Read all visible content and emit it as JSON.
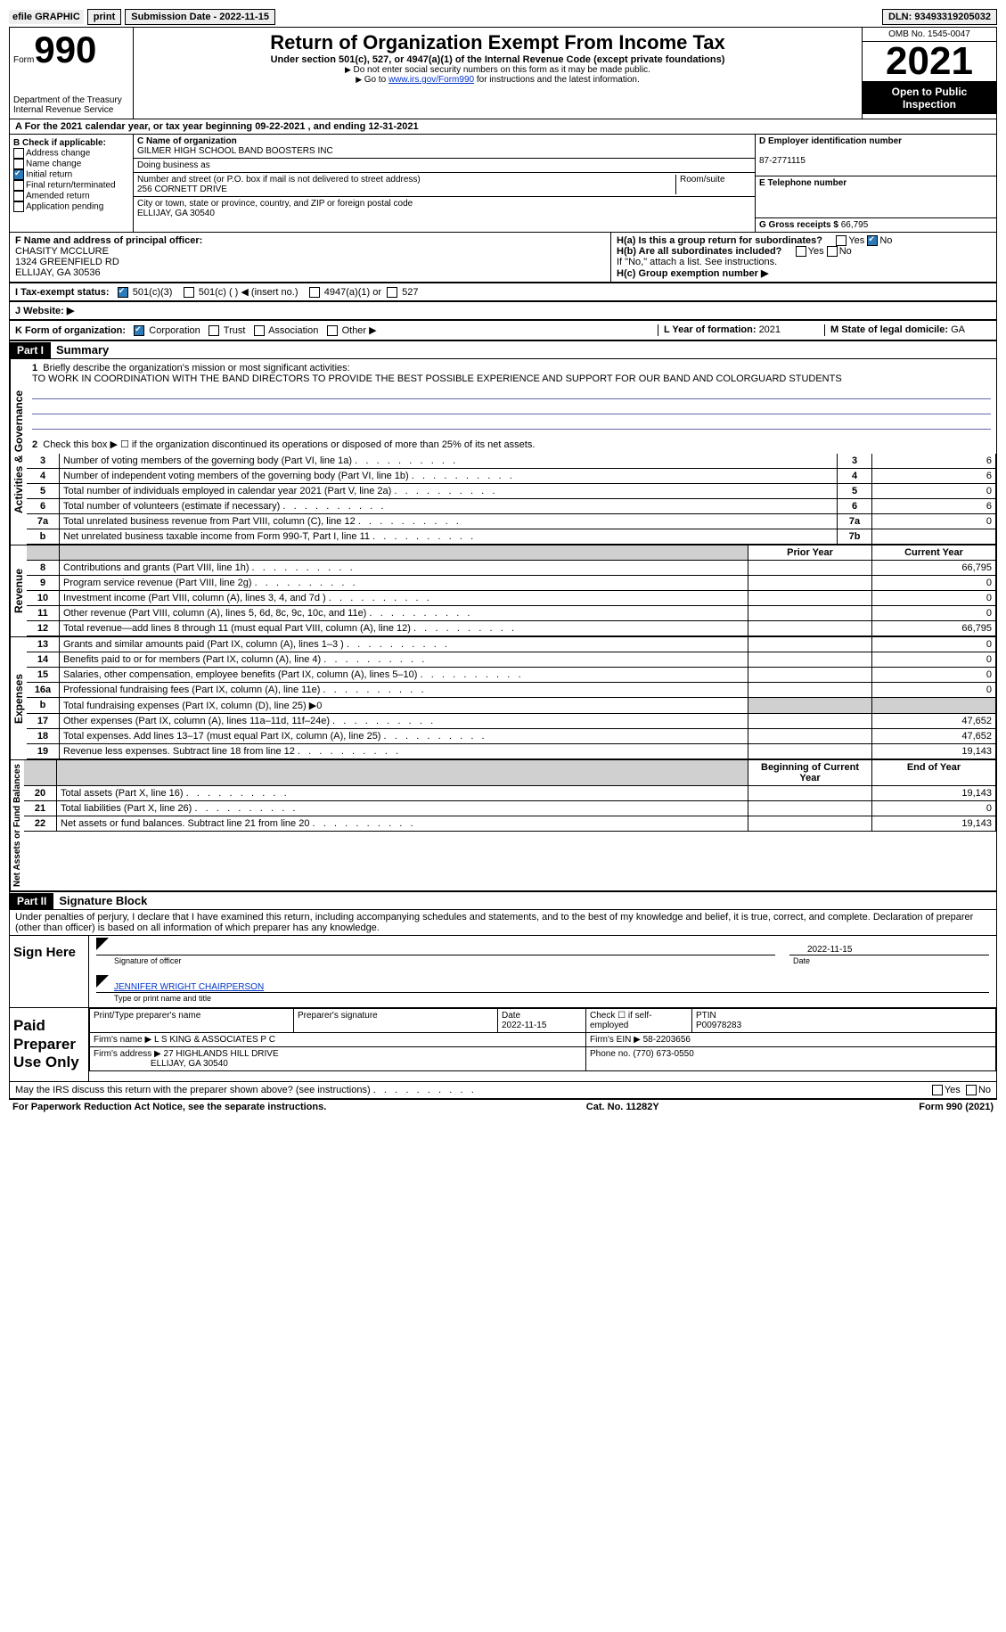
{
  "top": {
    "efile": "efile GRAPHIC",
    "print": "print",
    "submission_label": "Submission Date - ",
    "submission_date": "2022-11-15",
    "dln_label": "DLN: ",
    "dln": "93493319205032"
  },
  "header": {
    "form_label": "Form",
    "form_number": "990",
    "title": "Return of Organization Exempt From Income Tax",
    "sub1": "Under section 501(c), 527, or 4947(a)(1) of the Internal Revenue Code (except private foundations)",
    "sub2": "Do not enter social security numbers on this form as it may be made public.",
    "sub3_a": "Go to ",
    "sub3_link": "www.irs.gov/Form990",
    "sub3_b": " for instructions and the latest information.",
    "dept": "Department of the Treasury",
    "irs": "Internal Revenue Service",
    "omb": "OMB No. 1545-0047",
    "year": "2021",
    "open": "Open to Public Inspection"
  },
  "a": {
    "line": "A For the 2021 calendar year, or tax year beginning 09-22-2021    , and ending 12-31-2021"
  },
  "b": {
    "label": "B Check if applicable:",
    "addr": "Address change",
    "name": "Name change",
    "initial": "Initial return",
    "final": "Final return/terminated",
    "amended": "Amended return",
    "app": "Application pending"
  },
  "c": {
    "name_label": "C Name of organization",
    "name": "GILMER HIGH SCHOOL BAND BOOSTERS INC",
    "dba_label": "Doing business as",
    "street_label": "Number and street (or P.O. box if mail is not delivered to street address)",
    "street": "256 CORNETT DRIVE",
    "room_label": "Room/suite",
    "city_label": "City or town, state or province, country, and ZIP or foreign postal code",
    "city": "ELLIJAY, GA   30540"
  },
  "d": {
    "ein_label": "D Employer identification number",
    "ein": "87-2771115",
    "tel_label": "E Telephone number",
    "g_label": "G Gross receipts $ ",
    "g_val": "66,795"
  },
  "f": {
    "label": "F  Name and address of principal officer:",
    "name": "CHASITY MCCLURE",
    "street": "1324 GREENFIELD RD",
    "city": "ELLIJAY, GA   30536"
  },
  "h": {
    "a_label": "H(a)  Is this a group return for subordinates?",
    "yes": "Yes",
    "no": "No",
    "b_label": "H(b)  Are all subordinates included?",
    "b_note": "If \"No,\" attach a list. See instructions.",
    "c_label": "H(c)  Group exemption number ▶"
  },
  "i": {
    "label": "I   Tax-exempt status:",
    "o1": "501(c)(3)",
    "o2": "501(c) (   ) ◀ (insert no.)",
    "o3": "4947(a)(1) or",
    "o4": "527"
  },
  "j": {
    "label": "J   Website: ▶"
  },
  "k": {
    "label": "K Form of organization:",
    "corp": "Corporation",
    "trust": "Trust",
    "assoc": "Association",
    "other": "Other ▶",
    "l_label": "L Year of formation: ",
    "l_val": "2021",
    "m_label": "M State of legal domicile: ",
    "m_val": "GA"
  },
  "part1": {
    "label": "Part I",
    "title": "Summary",
    "l1_label": "1",
    "l1_text": "Briefly describe the organization's mission or most significant activities:",
    "l1_val": "TO WORK IN COORDINATION WITH THE BAND DIRECTORS TO PROVIDE THE BEST POSSIBLE EXPERIENCE AND SUPPORT FOR OUR BAND AND COLORGUARD STUDENTS",
    "l2": "Check this box ▶ ☐  if the organization discontinued its operations or disposed of more than 25% of its net assets.",
    "vert1": "Activities & Governance",
    "vert2": "Revenue",
    "vert3": "Expenses",
    "vert4": "Net Assets or Fund Balances",
    "prior": "Prior Year",
    "current": "Current Year",
    "begin": "Beginning of Current Year",
    "end": "End of Year",
    "rows_top": [
      {
        "n": "3",
        "d": "Number of voting members of the governing body (Part VI, line 1a)",
        "box": "3",
        "v": "6"
      },
      {
        "n": "4",
        "d": "Number of independent voting members of the governing body (Part VI, line 1b)",
        "box": "4",
        "v": "6"
      },
      {
        "n": "5",
        "d": "Total number of individuals employed in calendar year 2021 (Part V, line 2a)",
        "box": "5",
        "v": "0"
      },
      {
        "n": "6",
        "d": "Total number of volunteers (estimate if necessary)",
        "box": "6",
        "v": "6"
      },
      {
        "n": "7a",
        "d": "Total unrelated business revenue from Part VIII, column (C), line 12",
        "box": "7a",
        "v": "0"
      },
      {
        "n": "b",
        "d": "Net unrelated business taxable income from Form 990-T, Part I, line 11",
        "box": "7b",
        "v": ""
      }
    ],
    "rows_rev": [
      {
        "n": "8",
        "d": "Contributions and grants (Part VIII, line 1h)",
        "p": "",
        "c": "66,795"
      },
      {
        "n": "9",
        "d": "Program service revenue (Part VIII, line 2g)",
        "p": "",
        "c": "0"
      },
      {
        "n": "10",
        "d": "Investment income (Part VIII, column (A), lines 3, 4, and 7d )",
        "p": "",
        "c": "0"
      },
      {
        "n": "11",
        "d": "Other revenue (Part VIII, column (A), lines 5, 6d, 8c, 9c, 10c, and 11e)",
        "p": "",
        "c": "0"
      },
      {
        "n": "12",
        "d": "Total revenue—add lines 8 through 11 (must equal Part VIII, column (A), line 12)",
        "p": "",
        "c": "66,795"
      }
    ],
    "rows_exp": [
      {
        "n": "13",
        "d": "Grants and similar amounts paid (Part IX, column (A), lines 1–3 )",
        "p": "",
        "c": "0"
      },
      {
        "n": "14",
        "d": "Benefits paid to or for members (Part IX, column (A), line 4)",
        "p": "",
        "c": "0"
      },
      {
        "n": "15",
        "d": "Salaries, other compensation, employee benefits (Part IX, column (A), lines 5–10)",
        "p": "",
        "c": "0"
      },
      {
        "n": "16a",
        "d": "Professional fundraising fees (Part IX, column (A), line 11e)",
        "p": "",
        "c": "0"
      },
      {
        "n": "b",
        "d": "Total fundraising expenses (Part IX, column (D), line 25) ▶0",
        "shade": true
      },
      {
        "n": "17",
        "d": "Other expenses (Part IX, column (A), lines 11a–11d, 11f–24e)",
        "p": "",
        "c": "47,652"
      },
      {
        "n": "18",
        "d": "Total expenses. Add lines 13–17 (must equal Part IX, column (A), line 25)",
        "p": "",
        "c": "47,652"
      },
      {
        "n": "19",
        "d": "Revenue less expenses. Subtract line 18 from line 12",
        "p": "",
        "c": "19,143"
      }
    ],
    "rows_net": [
      {
        "n": "20",
        "d": "Total assets (Part X, line 16)",
        "p": "",
        "c": "19,143"
      },
      {
        "n": "21",
        "d": "Total liabilities (Part X, line 26)",
        "p": "",
        "c": "0"
      },
      {
        "n": "22",
        "d": "Net assets or fund balances. Subtract line 21 from line 20",
        "p": "",
        "c": "19,143"
      }
    ]
  },
  "part2": {
    "label": "Part II",
    "title": "Signature Block",
    "decl": "Under penalties of perjury, I declare that I have examined this return, including accompanying schedules and statements, and to the best of my knowledge and belief, it is true, correct, and complete. Declaration of preparer (other than officer) is based on all information of which preparer has any knowledge.",
    "sign_here": "Sign Here",
    "sig_officer": "Signature of officer",
    "sig_date": "2022-11-15",
    "date_label": "Date",
    "officer_name": "JENNIFER WRIGHT CHAIRPERSON",
    "type_name": "Type or print name and title",
    "paid": "Paid Preparer Use Only",
    "pt_name_label": "Print/Type preparer's name",
    "pt_sig_label": "Preparer's signature",
    "pt_date_label": "Date",
    "pt_date": "2022-11-15",
    "pt_check": "Check ☐ if self-employed",
    "ptin_label": "PTIN",
    "ptin": "P00978283",
    "firm_name_label": "Firm's name      ▶ ",
    "firm_name": "L S KING & ASSOCIATES P C",
    "firm_ein_label": "Firm's EIN ▶ ",
    "firm_ein": "58-2203656",
    "firm_addr_label": "Firm's address ▶ ",
    "firm_addr1": "27 HIGHLANDS HILL DRIVE",
    "firm_addr2": "ELLIJAY, GA  30540",
    "phone_label": "Phone no. ",
    "phone": "(770) 673-0550",
    "discuss": "May the IRS discuss this return with the preparer shown above? (see instructions)"
  },
  "footer": {
    "left": "For Paperwork Reduction Act Notice, see the separate instructions.",
    "center": "Cat. No. 11282Y",
    "right": "Form 990 (2021)"
  }
}
